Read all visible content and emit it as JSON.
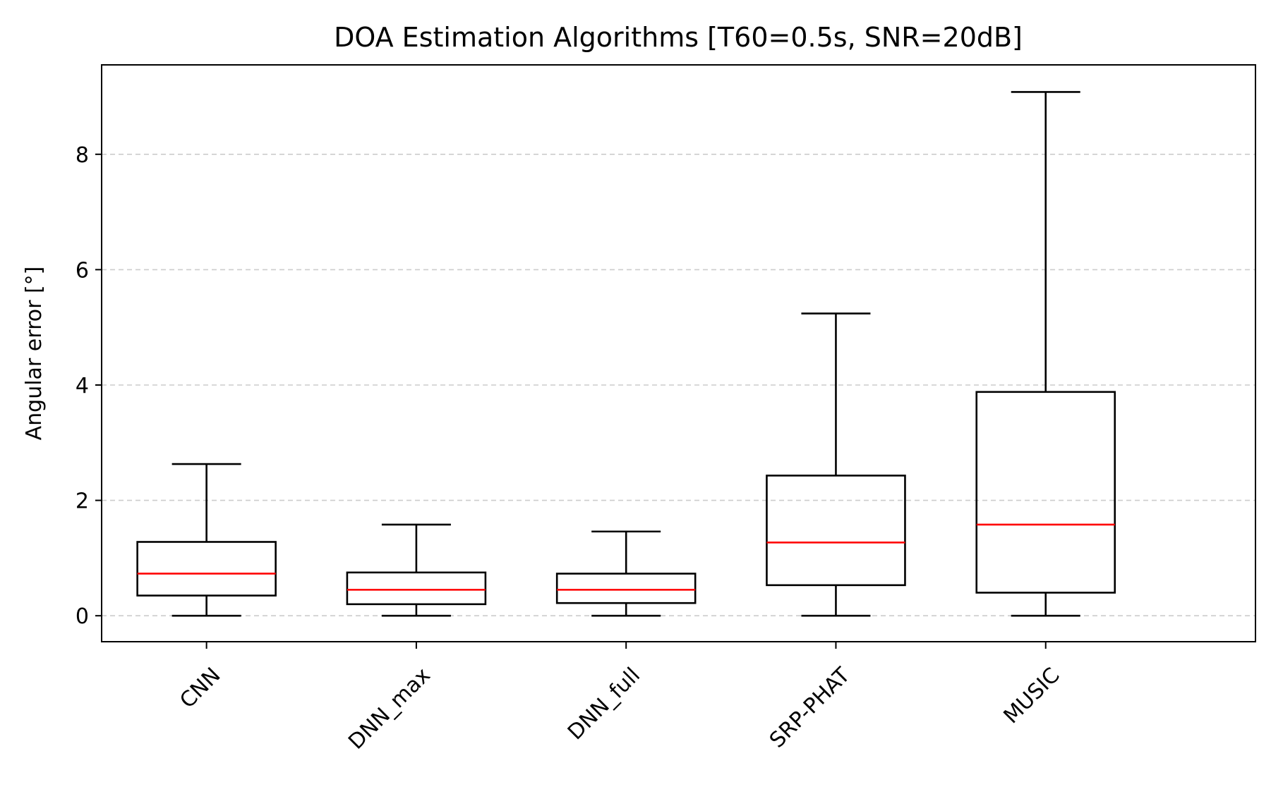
{
  "chart_data": {
    "type": "box",
    "title": "DOA Estimation Algorithms [T60=0.5s, SNR=20dB]",
    "xlabel": "",
    "ylabel": "Angular error [°]",
    "ylim": [
      -0.45,
      9.55
    ],
    "yticks": [
      0,
      2,
      4,
      6,
      8
    ],
    "grid": "y-dashed",
    "categories": [
      "CNN",
      "DNN_max",
      "DNN_full",
      "SRP-PHAT",
      "MUSIC"
    ],
    "boxes": [
      {
        "whisker_low": 0.0,
        "q1": 0.35,
        "median": 0.73,
        "q3": 1.28,
        "whisker_high": 2.63
      },
      {
        "whisker_low": 0.0,
        "q1": 0.2,
        "median": 0.45,
        "q3": 0.75,
        "whisker_high": 1.58
      },
      {
        "whisker_low": 0.0,
        "q1": 0.22,
        "median": 0.45,
        "q3": 0.73,
        "whisker_high": 1.46
      },
      {
        "whisker_low": 0.0,
        "q1": 0.53,
        "median": 1.27,
        "q3": 2.43,
        "whisker_high": 5.24
      },
      {
        "whisker_low": 0.0,
        "q1": 0.4,
        "median": 1.58,
        "q3": 3.88,
        "whisker_high": 9.08
      }
    ],
    "colors": {
      "box": "#000000",
      "median": "#ff0000",
      "grid": "#cccccc"
    }
  }
}
